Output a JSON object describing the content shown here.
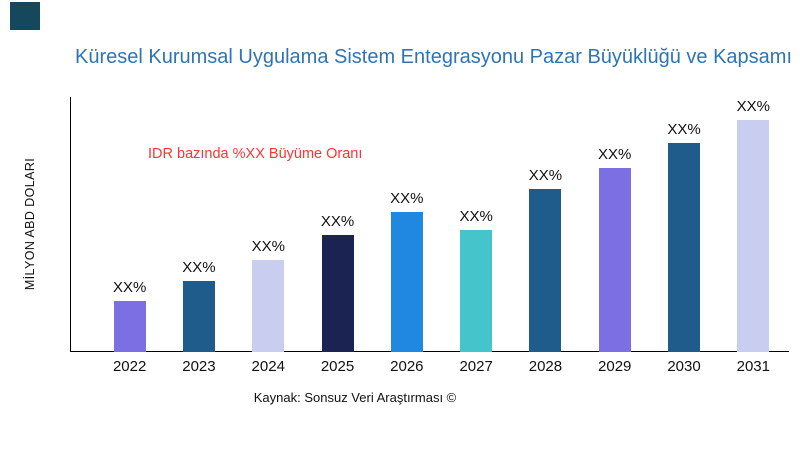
{
  "brand": {
    "logo_color": "#15485C"
  },
  "chart_data": {
    "type": "bar",
    "title": "Küresel Kurumsal Uygulama Sistem Entegrasyonu Pazar Büyüklüğü ve Kapsamı",
    "title_color": "#2E75B6",
    "ylabel": "MİLYON ABD DOLARI",
    "xlabel": "",
    "annotation": "IDR bazında %XX Büyüme Oranı",
    "annotation_color": "#FF3333",
    "source": "Kaynak: Sonsuz Veri Araştırması ©",
    "categories": [
      "2022",
      "2023",
      "2024",
      "2025",
      "2026",
      "2027",
      "2028",
      "2029",
      "2030",
      "2031"
    ],
    "values": [
      20,
      28,
      36,
      46,
      55,
      48,
      64,
      72,
      82,
      91
    ],
    "data_labels": [
      "XX%",
      "XX%",
      "XX%",
      "XX%",
      "XX%",
      "XX%",
      "XX%",
      "XX%",
      "XX%",
      "XX%"
    ],
    "ylim": [
      0,
      100
    ],
    "bar_colors": [
      "#7B6FE3",
      "#1F5C8B",
      "#C9CDEF",
      "#1A2352",
      "#2088E0",
      "#45C4CC",
      "#1F5C8B",
      "#7B6FE3",
      "#1F5C8B",
      "#C9CDEF"
    ],
    "grid": false,
    "legend": false
  }
}
